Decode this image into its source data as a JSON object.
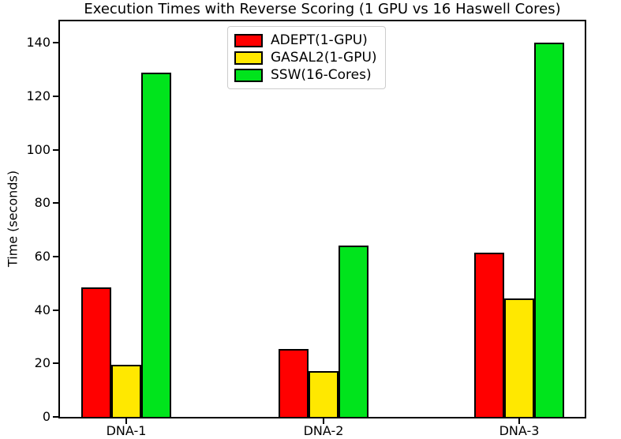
{
  "chart_data": {
    "type": "bar",
    "title": "Execution Times with Reverse Scoring (1 GPU vs 16 Haswell Cores)",
    "xlabel": "",
    "ylabel": "Time (seconds)",
    "categories": [
      "DNA-1",
      "DNA-2",
      "DNA-3"
    ],
    "series": [
      {
        "name": "ADEPT(1-GPU)",
        "color": "#ff0000",
        "values": [
          48.5,
          25.4,
          61.3
        ]
      },
      {
        "name": "GASAL2(1-GPU)",
        "color": "#ffe800",
        "values": [
          19.6,
          17.2,
          44.2
        ]
      },
      {
        "name": "SSW(16-Cores)",
        "color": "#00e41c",
        "values": [
          128.9,
          64.2,
          140.0
        ]
      }
    ],
    "ylim": [
      0,
      148
    ],
    "yticks": [
      0,
      20,
      40,
      60,
      80,
      100,
      120,
      140
    ],
    "legend_position": "upper center",
    "grid": false,
    "bar_edge_color": "#000000"
  }
}
